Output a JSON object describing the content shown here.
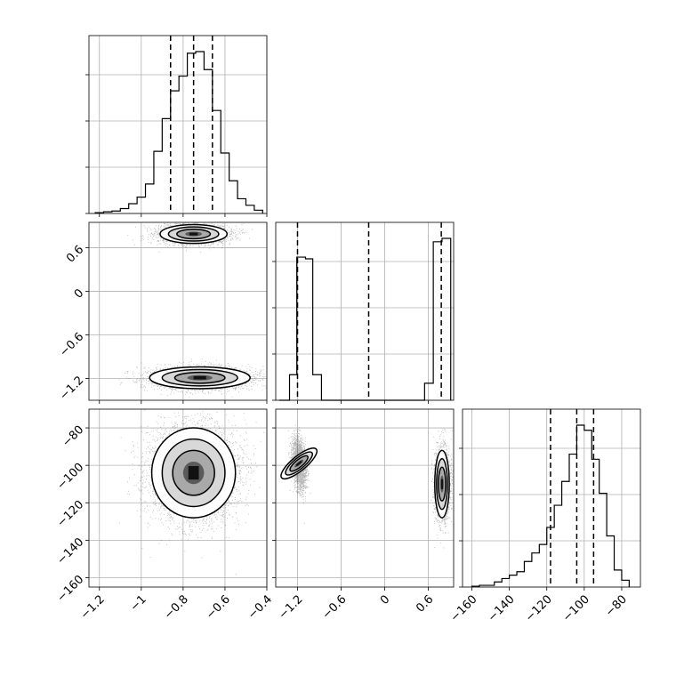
{
  "chart_data": {
    "type": "corner",
    "parameters": [
      {
        "range": [
          -1.25,
          -0.4
        ],
        "ticks": [
          -1.2,
          -1.0,
          -0.8,
          -0.6,
          -0.4
        ],
        "quantiles": [
          -0.86,
          -0.75,
          -0.66
        ]
      },
      {
        "range": [
          -1.5,
          0.95
        ],
        "ticks": [
          -1.2,
          -0.6,
          0.0,
          0.6
        ],
        "quantiles": [
          -1.2,
          -0.22,
          0.78
        ]
      },
      {
        "range": [
          -165,
          -70
        ],
        "ticks": [
          -160,
          -140,
          -120,
          -100,
          -80
        ],
        "quantiles": [
          -118,
          -104,
          -95
        ]
      }
    ],
    "diag_hist": [
      {
        "edges": [
          -1.22,
          -1.18,
          -1.14,
          -1.1,
          -1.06,
          -1.02,
          -0.98,
          -0.94,
          -0.9,
          -0.86,
          -0.82,
          -0.78,
          -0.74,
          -0.7,
          -0.66,
          -0.62,
          -0.58,
          -0.54,
          -0.5,
          -0.46,
          -0.42
        ],
        "counts": [
          0.005,
          0.01,
          0.015,
          0.03,
          0.06,
          0.1,
          0.18,
          0.38,
          0.58,
          0.75,
          0.84,
          0.98,
          0.99,
          0.88,
          0.63,
          0.37,
          0.2,
          0.09,
          0.05,
          0.02
        ]
      },
      {
        "edges": [
          -1.45,
          -1.31,
          -1.21,
          -1.09,
          -0.99,
          -0.87,
          0.55,
          0.67,
          0.79,
          0.91
        ],
        "counts": [
          0.0,
          0.15,
          0.84,
          0.83,
          0.15,
          0.0,
          0.1,
          0.93,
          0.95
        ]
      },
      {
        "edges": [
          -160,
          -156,
          -152,
          -148,
          -144,
          -140,
          -136,
          -132,
          -128,
          -124,
          -120,
          -116,
          -112,
          -108,
          -104,
          -100,
          -96,
          -92,
          -88,
          -84,
          -80,
          -76
        ],
        "counts": [
          0.005,
          0.01,
          0.01,
          0.03,
          0.05,
          0.07,
          0.09,
          0.15,
          0.2,
          0.25,
          0.35,
          0.48,
          0.62,
          0.78,
          0.95,
          0.92,
          0.75,
          0.55,
          0.3,
          0.1,
          0.04
        ]
      }
    ],
    "pairs": [
      {
        "row": 1,
        "col": 0,
        "blobs": [
          {
            "x": -0.75,
            "y": 0.79,
            "sx": 0.08,
            "sy": 0.065,
            "n": 2600
          },
          {
            "x": -0.72,
            "y": -1.19,
            "sx": 0.12,
            "sy": 0.075,
            "n": 2600
          }
        ]
      },
      {
        "row": 2,
        "col": 0,
        "blobs": [
          {
            "x": -0.75,
            "y": -104,
            "sx": 0.1,
            "sy": 12,
            "n": 5000
          }
        ]
      },
      {
        "row": 2,
        "col": 1,
        "blobs": [
          {
            "x": -1.18,
            "y": -99,
            "sx": 0.05,
            "sy": 6,
            "n": 2200,
            "rot": 0.45
          },
          {
            "x": 0.79,
            "y": -110,
            "sx": 0.05,
            "sy": 9,
            "n": 2200
          }
        ]
      }
    ]
  }
}
